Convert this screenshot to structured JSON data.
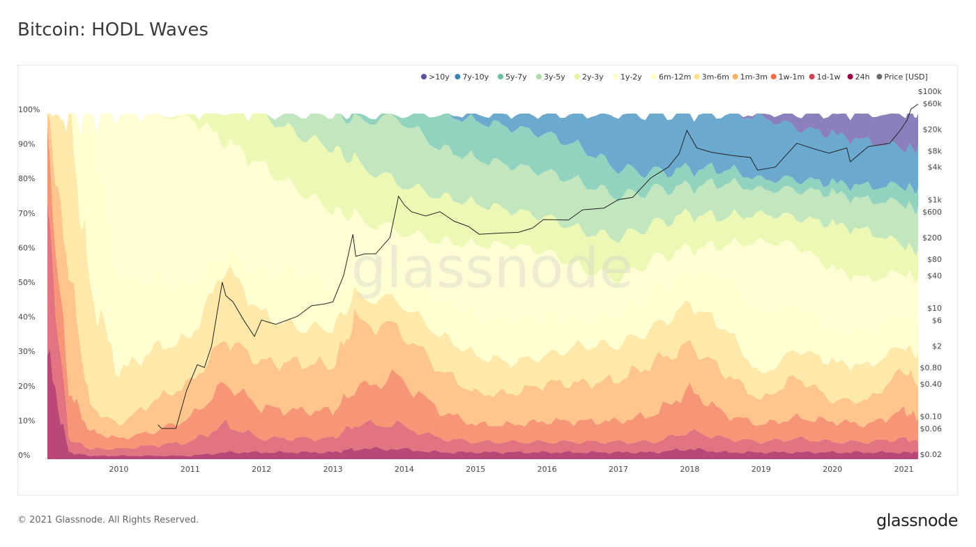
{
  "title": "Bitcoin: HODL Waves",
  "footer": {
    "copyright": "© 2021 Glassnode. All Rights Reserved.",
    "logo": "glassnode"
  },
  "watermark": "glassnode",
  "chart_data": {
    "type": "area",
    "stacked": true,
    "title": "Bitcoin: HODL Waves",
    "legend_position": "top-right",
    "grid": false,
    "x_ticks": [
      "2010",
      "2011",
      "2012",
      "2013",
      "2014",
      "2015",
      "2016",
      "2017",
      "2018",
      "2019",
      "2020",
      "2021"
    ],
    "x_range": [
      2009.0,
      2021.2
    ],
    "y_left": {
      "ticks": [
        "0%",
        "10%",
        "20%",
        "30%",
        "40%",
        "50%",
        "60%",
        "70%",
        "80%",
        "90%",
        "100%"
      ],
      "range": [
        0,
        100
      ]
    },
    "y_right": {
      "scale": "log",
      "ticks": [
        "$0.02",
        "$0.06",
        "$0.10",
        "$0.40",
        "$0.80",
        "$2",
        "$6",
        "$10",
        "$40",
        "$80",
        "$200",
        "$600",
        "$1k",
        "$4k",
        "$8k",
        "$20k",
        "$60k",
        "$100k"
      ],
      "tick_values": [
        0.02,
        0.06,
        0.1,
        0.4,
        0.8,
        2,
        6,
        10,
        40,
        80,
        200,
        600,
        1000,
        4000,
        8000,
        20000,
        60000,
        100000
      ],
      "range": [
        0.02,
        100000
      ]
    },
    "x": [
      2009.0,
      2009.3,
      2009.6,
      2010.0,
      2010.5,
      2011.0,
      2011.5,
      2012.0,
      2012.5,
      2013.0,
      2013.3,
      2013.9,
      2014.5,
      2015.0,
      2015.5,
      2016.0,
      2016.5,
      2017.0,
      2017.5,
      2018.0,
      2018.5,
      2019.0,
      2019.5,
      2020.0,
      2020.5,
      2021.0,
      2021.2
    ],
    "cumulative_note_free": true,
    "series": [
      {
        "name": "24h",
        "color": "#9e0142",
        "values": [
          30,
          2,
          1,
          1,
          1,
          1,
          2,
          2,
          2,
          2,
          3,
          3,
          2,
          2,
          2,
          2,
          2,
          2,
          2,
          3,
          2,
          2,
          2,
          2,
          2,
          2,
          2
        ]
      },
      {
        "name": "1d-1w",
        "color": "#d53e4f",
        "values": [
          40,
          4,
          2,
          2,
          3,
          4,
          8,
          4,
          4,
          4,
          7,
          7,
          4,
          3,
          3,
          3,
          3,
          3,
          3,
          5,
          4,
          3,
          4,
          3,
          3,
          4,
          3
        ]
      },
      {
        "name": "1w-1m",
        "color": "#f46d43",
        "values": [
          20,
          14,
          5,
          3,
          4,
          7,
          12,
          9,
          8,
          8,
          10,
          14,
          8,
          5,
          5,
          6,
          6,
          6,
          8,
          12,
          7,
          5,
          6,
          6,
          5,
          8,
          7
        ]
      },
      {
        "name": "1m-3m",
        "color": "#fdae61",
        "values": [
          10,
          35,
          7,
          4,
          9,
          10,
          13,
          13,
          14,
          13,
          20,
          14,
          12,
          9,
          9,
          11,
          11,
          12,
          15,
          13,
          12,
          7,
          12,
          6,
          7,
          12,
          10
        ]
      },
      {
        "name": "3m-6m",
        "color": "#fee08b",
        "values": [
          0,
          45,
          35,
          15,
          15,
          13,
          21,
          14,
          10,
          11,
          7,
          8,
          10,
          11,
          9,
          8,
          11,
          10,
          10,
          12,
          13,
          7,
          8,
          11,
          10,
          7,
          8
        ]
      },
      {
        "name": "6m-12m",
        "color": "#ffffbf",
        "values": [
          0,
          0,
          50,
          27,
          20,
          15,
          4,
          13,
          16,
          12,
          5,
          9,
          10,
          12,
          12,
          12,
          7,
          9,
          11,
          9,
          15,
          18,
          13,
          9,
          10,
          9,
          11
        ]
      },
      {
        "name": "1y-2y",
        "color": "#fffcc4",
        "values": [
          0,
          0,
          0,
          48,
          48,
          49,
          32,
          30,
          24,
          22,
          18,
          11,
          17,
          20,
          22,
          18,
          15,
          10,
          9,
          7,
          9,
          21,
          17,
          18,
          15,
          12,
          11
        ]
      },
      {
        "name": "2y-3y",
        "color": "#e6f598",
        "values": [
          0,
          0,
          0,
          0,
          0,
          1,
          10,
          15,
          16,
          18,
          16,
          14,
          13,
          12,
          10,
          10,
          11,
          12,
          10,
          10,
          8,
          8,
          8,
          13,
          14,
          8,
          8
        ]
      },
      {
        "name": "3y-5y",
        "color": "#abdda4",
        "values": [
          0,
          0,
          0,
          0,
          0,
          0,
          0,
          0,
          6,
          10,
          12,
          19,
          14,
          13,
          13,
          13,
          14,
          12,
          10,
          8,
          10,
          7,
          8,
          9,
          9,
          12,
          12
        ]
      },
      {
        "name": "5y-7y",
        "color": "#66c2a5",
        "values": [
          0,
          0,
          0,
          0,
          0,
          0,
          0,
          0,
          0,
          0,
          2,
          1,
          10,
          11,
          11,
          11,
          10,
          8,
          5,
          5,
          4,
          3,
          3,
          3,
          4,
          5,
          6
        ]
      },
      {
        "name": "7y-10y",
        "color": "#3288bd",
        "values": [
          0,
          0,
          0,
          0,
          0,
          0,
          0,
          0,
          0,
          0,
          0,
          0,
          0,
          2,
          4,
          6,
          10,
          16,
          17,
          16,
          16,
          18,
          15,
          14,
          13,
          11,
          12
        ]
      },
      {
        "name": ">10y",
        "color": "#5e4fa2",
        "values": [
          0,
          0,
          0,
          0,
          0,
          0,
          0,
          0,
          0,
          0,
          0,
          0,
          0,
          0,
          0,
          0,
          0,
          0,
          0,
          0,
          0,
          1,
          4,
          6,
          8,
          10,
          10
        ]
      }
    ],
    "price": {
      "name": "Price [USD]",
      "color": "#222222",
      "legend_color": "#6b6b6b",
      "x": [
        2010.55,
        2010.6,
        2010.8,
        2010.95,
        2011.1,
        2011.2,
        2011.3,
        2011.45,
        2011.5,
        2011.6,
        2011.75,
        2011.9,
        2012.0,
        2012.2,
        2012.5,
        2012.7,
        2012.9,
        2013.0,
        2013.15,
        2013.28,
        2013.32,
        2013.45,
        2013.6,
        2013.8,
        2013.92,
        2014.0,
        2014.1,
        2014.3,
        2014.5,
        2014.7,
        2014.9,
        2015.05,
        2015.3,
        2015.6,
        2015.8,
        2015.95,
        2016.3,
        2016.5,
        2016.8,
        2017.0,
        2017.2,
        2017.45,
        2017.7,
        2017.85,
        2017.96,
        2018.1,
        2018.3,
        2018.6,
        2018.85,
        2018.95,
        2019.2,
        2019.5,
        2019.7,
        2019.95,
        2020.2,
        2020.25,
        2020.5,
        2020.8,
        2020.95,
        2021.05,
        2021.1,
        2021.2
      ],
      "values": [
        0.07,
        0.06,
        0.06,
        0.3,
        0.9,
        0.8,
        2,
        30,
        17,
        13,
        6,
        3,
        6,
        5,
        7,
        11,
        12,
        13,
        40,
        230,
        90,
        100,
        100,
        200,
        1150,
        800,
        600,
        500,
        600,
        400,
        320,
        230,
        240,
        250,
        300,
        430,
        420,
        650,
        700,
        1000,
        1100,
        2500,
        4000,
        7000,
        19000,
        9000,
        7500,
        6500,
        6000,
        3500,
        4000,
        11000,
        9000,
        7200,
        9000,
        5000,
        9500,
        11000,
        19000,
        30000,
        47000,
        58000
      ]
    }
  }
}
